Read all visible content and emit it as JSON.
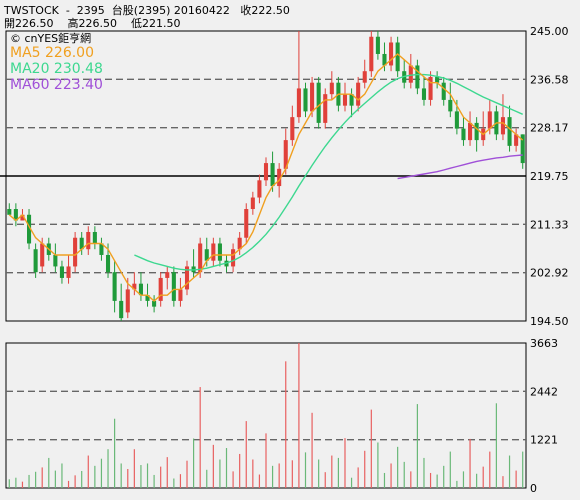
{
  "header": {
    "line1": "TWSTOCK  -  2395  台股(2395) 20160422   收222.50",
    "line2": "開226.50    高226.50    低221.50"
  },
  "source_label": "© cnYES鉅亨網",
  "colors": {
    "up": "#e0403a",
    "down": "#1f9a3a",
    "ma5": "#f0a020",
    "ma20": "#3dd890",
    "ma60": "#a050d8",
    "vol_up": "#e86060",
    "vol_down": "#6ab878",
    "ref_line": "#000000"
  },
  "chart_data": {
    "type": "candlestick",
    "price_axis": {
      "ticks": [
        "245.00",
        "236.58",
        "228.17",
        "219.75",
        "211.33",
        "202.92",
        "194.50"
      ],
      "ylim": [
        194.5,
        245.0
      ]
    },
    "volume_axis": {
      "ticks": [
        "3663",
        "2442",
        "1221",
        "0"
      ],
      "ylim": [
        0,
        3663
      ]
    },
    "reference_price": 219.75,
    "legend": [
      {
        "key": "ma5",
        "label": "MA5 226.00"
      },
      {
        "key": "ma20",
        "label": "MA20 230.48"
      },
      {
        "key": "ma60",
        "label": "MA60 223.40"
      }
    ],
    "candles": [
      [
        214,
        213,
        215,
        213
      ],
      [
        214,
        212,
        215,
        211
      ],
      [
        212,
        213,
        214,
        212
      ],
      [
        213,
        208,
        214,
        207
      ],
      [
        207,
        203,
        208,
        202
      ],
      [
        204,
        208,
        209,
        203
      ],
      [
        208,
        206,
        209,
        205
      ],
      [
        206,
        204,
        208,
        203
      ],
      [
        204,
        202,
        205,
        201
      ],
      [
        202,
        204,
        206,
        201
      ],
      [
        204,
        209,
        210,
        203
      ],
      [
        209,
        207,
        210,
        206
      ],
      [
        207,
        210,
        211,
        206
      ],
      [
        210,
        208,
        211,
        207
      ],
      [
        208,
        206,
        209,
        205
      ],
      [
        206,
        203,
        208,
        202
      ],
      [
        203,
        198,
        205,
        196
      ],
      [
        198,
        195,
        201,
        194.5
      ],
      [
        196,
        200,
        202,
        195
      ],
      [
        200,
        201,
        203,
        199
      ],
      [
        201,
        199,
        203,
        198
      ],
      [
        199,
        198,
        201,
        197
      ],
      [
        198,
        197,
        199,
        196
      ],
      [
        198,
        202,
        203,
        197
      ],
      [
        202,
        203,
        204,
        200
      ],
      [
        203,
        198,
        204,
        197
      ],
      [
        198,
        200,
        202,
        197
      ],
      [
        200,
        204,
        205,
        199
      ],
      [
        204,
        203,
        207,
        202
      ],
      [
        203,
        208,
        209,
        202
      ],
      [
        207,
        205,
        209,
        204
      ],
      [
        205,
        208,
        209,
        204
      ],
      [
        208,
        205,
        209,
        204
      ],
      [
        205,
        204,
        206,
        203
      ],
      [
        204,
        207,
        208,
        203
      ],
      [
        207,
        209,
        210,
        206
      ],
      [
        209,
        214,
        215,
        208
      ],
      [
        214,
        216,
        217,
        213
      ],
      [
        216,
        219,
        220,
        215
      ],
      [
        219,
        222,
        223,
        218
      ],
      [
        222,
        218,
        224,
        217
      ],
      [
        218,
        221,
        222,
        216
      ],
      [
        221,
        226,
        228,
        220
      ],
      [
        226,
        230,
        232,
        225
      ],
      [
        230,
        235,
        245,
        229
      ],
      [
        235,
        231,
        236,
        230
      ],
      [
        231,
        236,
        237,
        230
      ],
      [
        236,
        229,
        237,
        228
      ],
      [
        229,
        234,
        235,
        228
      ],
      [
        234,
        236,
        238,
        233
      ],
      [
        236,
        232,
        237,
        231
      ],
      [
        232,
        234,
        236,
        231
      ],
      [
        234,
        232,
        235,
        230
      ],
      [
        232,
        236,
        237,
        231
      ],
      [
        236,
        238,
        240,
        235
      ],
      [
        238,
        244,
        245,
        237
      ],
      [
        244,
        241,
        245,
        240
      ],
      [
        241,
        239,
        243,
        238
      ],
      [
        239,
        243,
        244,
        238
      ],
      [
        243,
        238,
        244,
        237
      ],
      [
        238,
        236,
        240,
        235
      ],
      [
        236,
        239,
        241,
        235
      ],
      [
        239,
        235,
        240,
        234
      ],
      [
        235,
        233,
        237,
        232
      ],
      [
        233,
        237,
        238,
        232
      ],
      [
        237,
        236,
        238,
        235
      ],
      [
        236,
        233,
        237,
        232
      ],
      [
        233,
        231,
        236,
        230
      ],
      [
        231,
        228,
        233,
        227
      ],
      [
        228,
        226,
        230,
        225
      ],
      [
        226,
        229,
        231,
        225
      ],
      [
        229,
        226,
        230,
        224
      ],
      [
        226,
        228,
        231,
        225
      ],
      [
        228,
        231,
        233,
        227
      ],
      [
        231,
        227,
        232,
        226
      ],
      [
        227,
        230,
        234,
        226
      ],
      [
        230,
        225,
        232,
        224
      ],
      [
        225,
        227,
        228,
        224
      ],
      [
        227,
        222,
        227,
        221
      ]
    ],
    "ma5": [
      213,
      212,
      213,
      211,
      209,
      208,
      207,
      206,
      206,
      206,
      206,
      207,
      208,
      208,
      208,
      207,
      205,
      203,
      201,
      200,
      199,
      199,
      198,
      199,
      199,
      200,
      200,
      201,
      202,
      203,
      205,
      206,
      206,
      206,
      206,
      207,
      208,
      210,
      213,
      216,
      218,
      219,
      221,
      224,
      227,
      229,
      231,
      232,
      233,
      233,
      234,
      234,
      234,
      233,
      234,
      236,
      238,
      239,
      240,
      241,
      240,
      239,
      238,
      237,
      236,
      236,
      235,
      234,
      232,
      230,
      229,
      228,
      227,
      228,
      229,
      229,
      228,
      227,
      226
    ],
    "ma20": [
      null,
      null,
      null,
      null,
      null,
      null,
      null,
      null,
      null,
      null,
      null,
      null,
      null,
      null,
      null,
      null,
      null,
      null,
      null,
      206,
      205.5,
      205,
      204.6,
      204.3,
      204,
      203.7,
      203.5,
      203.4,
      203.4,
      203.5,
      203.7,
      204,
      204.3,
      204.6,
      205,
      205.6,
      206.4,
      207.3,
      208.4,
      209.6,
      211,
      212.6,
      214.3,
      216.1,
      218,
      219.8,
      221.6,
      223.3,
      224.9,
      226.4,
      227.8,
      229.1,
      230.3,
      231.4,
      232.4,
      233.4,
      234.4,
      235.3,
      236.1,
      236.7,
      237.1,
      237.3,
      237.4,
      237.4,
      237.3,
      237.1,
      236.8,
      236.4,
      235.9,
      235.3,
      234.7,
      234.1,
      233.5,
      233,
      232.5,
      232,
      231.5,
      231,
      230.5
    ],
    "ma60": {
      "start_index": 59,
      "values": [
        219.3,
        219.5,
        219.7,
        219.9,
        220.1,
        220.3,
        220.5,
        220.8,
        221.1,
        221.4,
        221.7,
        222,
        222.3,
        222.5,
        222.7,
        222.9,
        223,
        223.2,
        223.3,
        223.4
      ]
    },
    "volumes": [
      220,
      260,
      160,
      330,
      410,
      520,
      760,
      440,
      620,
      180,
      320,
      430,
      820,
      560,
      740,
      980,
      1750,
      620,
      480,
      980,
      580,
      620,
      330,
      540,
      780,
      240,
      350,
      690,
      1250,
      2550,
      460,
      1090,
      720,
      1010,
      420,
      860,
      1690,
      720,
      340,
      1380,
      560,
      620,
      3200,
      700,
      3663,
      900,
      1900,
      720,
      400,
      820,
      760,
      1260,
      260,
      520,
      940,
      1980,
      1150,
      380,
      620,
      1040,
      660,
      420,
      2120,
      760,
      380,
      340,
      560,
      920,
      180,
      420,
      1240,
      360,
      540,
      920,
      2140,
      300,
      820,
      440,
      920
    ]
  }
}
